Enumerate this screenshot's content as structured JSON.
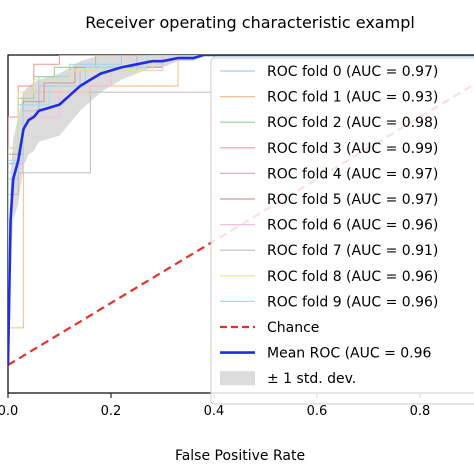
{
  "chart_data": {
    "type": "line",
    "title": "Receiver operating characteristic exampl",
    "xlabel": "False Positive Rate",
    "ylabel": "",
    "xlim": [
      0,
      0.9
    ],
    "ylim": [
      0,
      1.0
    ],
    "xticks": [
      "0.0",
      "0.2",
      "0.4",
      "0.6",
      "0.8"
    ],
    "legend_position": "right",
    "series": [
      {
        "name": "ROC fold 0 (AUC = 0.97)",
        "color": "#9fd0e8",
        "x": [
          0,
          0,
          0.02,
          0.02,
          0.06,
          0.06,
          0.12,
          0.12,
          0.22,
          0.22,
          1.0
        ],
        "y": [
          0,
          0.6,
          0.6,
          0.84,
          0.84,
          0.93,
          0.93,
          0.97,
          0.97,
          1.0,
          1.0
        ]
      },
      {
        "name": "ROC fold 1 (AUC = 0.93)",
        "color": "#f7c08f",
        "x": [
          0,
          0,
          0.03,
          0.03,
          0.08,
          0.08,
          0.16,
          0.16,
          0.33,
          0.33,
          1.0
        ],
        "y": [
          0,
          0.12,
          0.12,
          0.88,
          0.88,
          0.88,
          0.88,
          0.9,
          0.9,
          1.0,
          1.0
        ]
      },
      {
        "name": "ROC fold 2 (AUC = 0.98)",
        "color": "#99cf99",
        "x": [
          0,
          0,
          0.02,
          0.02,
          0.05,
          0.05,
          0.09,
          0.09,
          0.17,
          0.17,
          1.0
        ],
        "y": [
          0,
          0.7,
          0.7,
          0.86,
          0.86,
          0.93,
          0.93,
          0.96,
          0.96,
          1.0,
          1.0
        ]
      },
      {
        "name": "ROC fold 3 (AUC = 0.99)",
        "color": "#f29a9a",
        "x": [
          0,
          0,
          0.02,
          0.02,
          0.05,
          0.05,
          0.1,
          0.1,
          1.0
        ],
        "y": [
          0,
          0.8,
          0.8,
          0.9,
          0.9,
          0.97,
          0.97,
          1.0,
          1.0
        ]
      },
      {
        "name": "ROC fold 4 (AUC = 0.97)",
        "color": "#c9b6e0",
        "x": [
          0,
          0,
          0.03,
          0.03,
          0.06,
          0.06,
          0.14,
          0.14,
          0.25,
          0.25,
          1.0
        ],
        "y": [
          0,
          0.65,
          0.65,
          0.82,
          0.82,
          0.9,
          0.9,
          0.95,
          0.95,
          1.0,
          1.0
        ]
      },
      {
        "name": "ROC fold 5 (AUC = 0.97)",
        "color": "#c9a097",
        "x": [
          0,
          0,
          0.03,
          0.03,
          0.07,
          0.07,
          0.13,
          0.13,
          0.3,
          0.3,
          1.0
        ],
        "y": [
          0,
          0.68,
          0.68,
          0.85,
          0.85,
          0.91,
          0.91,
          0.96,
          0.96,
          1.0,
          1.0
        ]
      },
      {
        "name": "ROC fold 6 (AUC = 0.96)",
        "color": "#f4bce0",
        "x": [
          0,
          0,
          0.03,
          0.03,
          0.1,
          0.1,
          0.2,
          0.2,
          0.3,
          0.3,
          1.0
        ],
        "y": [
          0,
          0.62,
          0.62,
          0.8,
          0.8,
          0.9,
          0.9,
          0.95,
          0.95,
          1.0,
          1.0
        ]
      },
      {
        "name": "ROC fold 7 (AUC = 0.91)",
        "color": "#bfbfbf",
        "x": [
          0,
          0,
          0.02,
          0.02,
          0.05,
          0.05,
          0.16,
          0.16,
          0.4,
          0.4,
          1.0
        ],
        "y": [
          0,
          0.55,
          0.55,
          0.62,
          0.62,
          0.62,
          0.62,
          0.88,
          0.88,
          1.0,
          1.0
        ]
      },
      {
        "name": "ROC fold 8 (AUC = 0.96)",
        "color": "#e3e39a",
        "x": [
          0,
          0,
          0.02,
          0.02,
          0.05,
          0.05,
          0.12,
          0.12,
          0.28,
          0.28,
          1.0
        ],
        "y": [
          0,
          0.7,
          0.7,
          0.88,
          0.88,
          0.92,
          0.92,
          0.95,
          0.95,
          1.0,
          1.0
        ]
      },
      {
        "name": "ROC fold 9 (AUC = 0.96)",
        "color": "#9ee0e8",
        "x": [
          0,
          0,
          0.03,
          0.03,
          0.08,
          0.08,
          0.15,
          0.15,
          0.27,
          0.27,
          1.0
        ],
        "y": [
          0,
          0.66,
          0.66,
          0.84,
          0.84,
          0.9,
          0.9,
          0.96,
          0.96,
          1.0,
          1.0
        ]
      }
    ],
    "chance": {
      "name": "Chance",
      "color": "#e8302a",
      "x": [
        0,
        1
      ],
      "y": [
        0,
        1
      ]
    },
    "mean": {
      "name": "Mean ROC (AUC = 0.96",
      "color": "#1f2ee6",
      "x": [
        0,
        0.005,
        0.01,
        0.02,
        0.03,
        0.04,
        0.05,
        0.06,
        0.08,
        0.1,
        0.12,
        0.14,
        0.16,
        0.18,
        0.2,
        0.22,
        0.25,
        0.28,
        0.3,
        0.33,
        0.36,
        0.38,
        0.4,
        1.0
      ],
      "y": [
        0,
        0.47,
        0.6,
        0.66,
        0.76,
        0.79,
        0.8,
        0.82,
        0.83,
        0.84,
        0.87,
        0.9,
        0.92,
        0.94,
        0.95,
        0.96,
        0.97,
        0.98,
        0.98,
        0.99,
        0.99,
        1.0,
        1.0,
        1.0
      ],
      "std_upper": [
        0.02,
        0.62,
        0.73,
        0.8,
        0.88,
        0.9,
        0.91,
        0.92,
        0.93,
        0.94,
        0.96,
        0.98,
        0.99,
        1.0,
        1.0,
        1.0,
        1.0,
        1.0,
        1.0,
        1.0,
        1.0,
        1.0,
        1.0,
        1.0
      ],
      "std_lower": [
        0,
        0.32,
        0.47,
        0.52,
        0.64,
        0.68,
        0.69,
        0.72,
        0.73,
        0.74,
        0.78,
        0.82,
        0.85,
        0.88,
        0.9,
        0.92,
        0.94,
        0.96,
        0.96,
        0.98,
        0.98,
        1.0,
        1.0,
        1.0
      ]
    },
    "std_band": {
      "name": "± 1 std. dev.",
      "color": "#bdbdbd"
    }
  }
}
